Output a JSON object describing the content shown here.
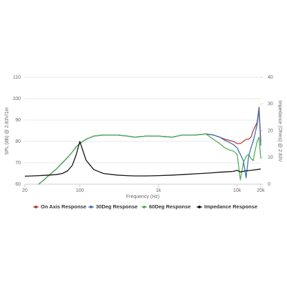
{
  "chart_data": {
    "type": "line",
    "x_label": "Frequency (Hz)",
    "y_label": "SPL (dB) @ 2.83V/1m",
    "y2_label": "Impedance (Ohms) @ 2.83V",
    "xscale": "log",
    "xlim": [
      20,
      20000
    ],
    "xticks": [
      20,
      {
        "value": 100,
        "label": "100"
      },
      {
        "value": 1000,
        "label": "1k"
      },
      {
        "value": 10000,
        "label": "10k"
      },
      {
        "value": 20000,
        "label": "20k"
      }
    ],
    "ylim": [
      60,
      110
    ],
    "yticks": [
      60,
      70,
      80,
      90,
      100,
      110
    ],
    "y2lim": [
      0,
      40
    ],
    "y2ticks": [
      0,
      10,
      20,
      30,
      40
    ],
    "grid": true,
    "legend": "bottom",
    "x": [
      20,
      25,
      30,
      35,
      40,
      50,
      60,
      70,
      80,
      90,
      100,
      120,
      150,
      200,
      300,
      400,
      500,
      700,
      1000,
      1500,
      2000,
      3000,
      4000,
      5000,
      6000,
      7000,
      8000,
      9000,
      10000,
      11000,
      12000,
      13000,
      14000,
      15000,
      16000,
      17000,
      18000,
      19000,
      20000
    ],
    "series": [
      {
        "name": "On Axis Response",
        "color": "#b03a3a",
        "values": [
          null,
          null,
          60,
          62,
          64,
          67,
          70,
          72.5,
          75,
          77.5,
          79,
          81,
          82.5,
          83,
          83,
          82.5,
          82,
          82.5,
          82.5,
          82,
          83,
          83,
          83.5,
          83,
          82,
          81,
          80.5,
          80,
          79,
          79,
          80,
          81,
          81,
          82,
          85,
          87,
          89,
          96,
          80
        ]
      },
      {
        "name": "30Deg Response",
        "color": "#3e6fb0",
        "values": [
          null,
          null,
          60,
          62,
          64,
          67,
          70,
          72.5,
          75,
          77.5,
          79,
          81,
          82.5,
          83,
          83,
          82.5,
          82,
          82.5,
          82.5,
          82,
          83,
          83,
          83.5,
          83,
          82,
          80.5,
          79.5,
          78.5,
          77,
          74,
          71,
          63,
          73,
          77,
          80,
          84,
          88,
          95,
          78
        ]
      },
      {
        "name": "60Deg Response",
        "color": "#4caf5a",
        "values": [
          null,
          null,
          60,
          62,
          64,
          67,
          70,
          72.5,
          75,
          77.5,
          79,
          81,
          82.5,
          83,
          83,
          82.5,
          82,
          82.5,
          82.5,
          82,
          83,
          83,
          83.5,
          81,
          79,
          77,
          76,
          75.5,
          74,
          62,
          70,
          73,
          74,
          72,
          71,
          76,
          80,
          82,
          72
        ]
      },
      {
        "name": "Impedance Response",
        "color": "#111111",
        "axis": "y2",
        "values": [
          3,
          3.1,
          3.2,
          3.3,
          3.4,
          3.6,
          4,
          5,
          7,
          11,
          16,
          9,
          5.5,
          4,
          3.4,
          3.2,
          3.1,
          3.1,
          3.2,
          3.4,
          3.6,
          3.9,
          4.1,
          4.3,
          4.5,
          4.6,
          4.7,
          4.8,
          5.2,
          4.6,
          4.8,
          5,
          5.1,
          5.2,
          5.3,
          5.4,
          5.5,
          5.6,
          5.7
        ]
      }
    ]
  }
}
